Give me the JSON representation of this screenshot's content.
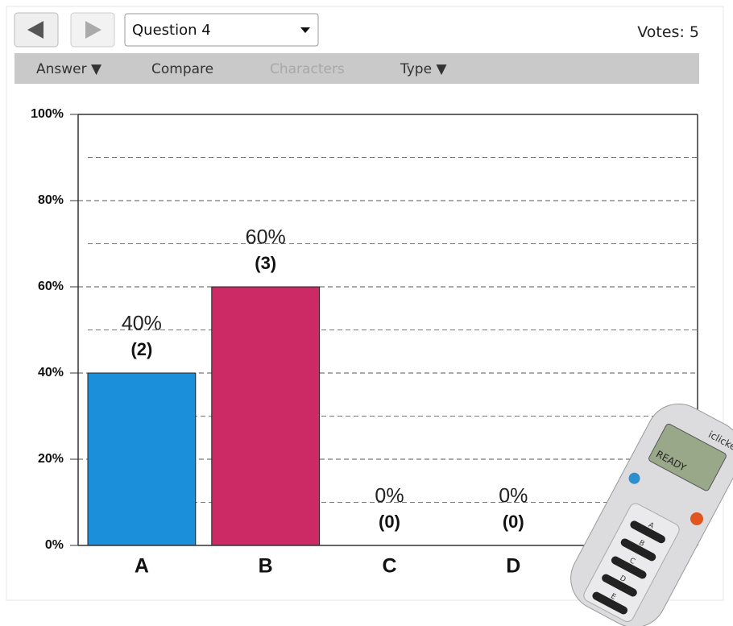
{
  "toolbar": {
    "question": "Question 4",
    "votes_label": "Votes:",
    "votes": 5
  },
  "menu": [
    "Answer ▼",
    "Compare",
    "Characters",
    "Type ▼"
  ],
  "chart_data": {
    "type": "bar",
    "categories": [
      "A",
      "B",
      "C",
      "D",
      null
    ],
    "values": [
      40,
      60,
      0,
      0,
      0
    ],
    "value_labels": [
      "40%",
      "60%",
      "0%",
      "0%",
      "0"
    ],
    "counts": [
      2,
      3,
      0,
      0,
      0
    ],
    "count_labels": [
      "(2)",
      "(3)",
      "(0)",
      "(0)",
      null
    ],
    "colors": [
      "#1b8fd9",
      "#cc2a64",
      "#1b8fd9",
      "#1b8fd9",
      "#1b8fd9"
    ],
    "ylim": [
      0,
      100
    ],
    "yticks": [
      {
        "value": 0,
        "label": "0%"
      },
      {
        "value": 20,
        "label": "20%"
      },
      {
        "value": 40,
        "label": "40%"
      },
      {
        "value": 60,
        "label": "60%"
      },
      {
        "value": 80,
        "label": "80%"
      },
      {
        "value": 100,
        "label": "100%"
      }
    ],
    "minor_yticks": [
      10,
      30,
      50,
      70,
      90
    ],
    "grid": true
  },
  "device": {
    "brand": "iclicker",
    "screen": "READY",
    "buttons": [
      "A",
      "B",
      "C",
      "D",
      "E"
    ]
  }
}
